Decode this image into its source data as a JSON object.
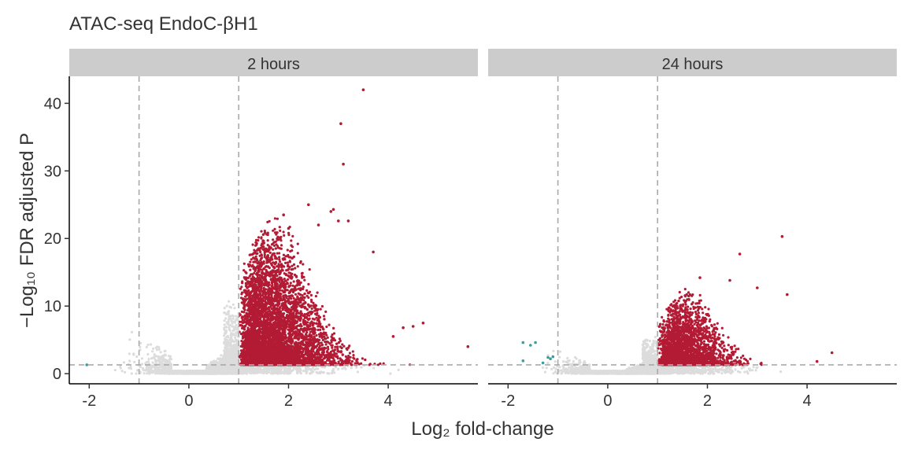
{
  "chart_data": {
    "type": "scatter",
    "title": "ATAC-seq EndoC-βH1",
    "xlabel": "Log₂ fold-change",
    "ylabel": "−Log₁₀ FDR adjusted P",
    "xlim": [
      -2.4,
      5.8
    ],
    "ylim": [
      -1.5,
      44
    ],
    "x_ticks": [
      -2,
      0,
      2,
      4
    ],
    "y_ticks": [
      0,
      10,
      20,
      30,
      40
    ],
    "x_tick_labels": [
      "-2",
      "0",
      "2",
      "4"
    ],
    "y_tick_labels": [
      "0",
      "10",
      "20",
      "30",
      "40"
    ],
    "thresholds": {
      "log2fc": [
        -1,
        1
      ],
      "neg_log10_p": 1.3
    },
    "grid": false,
    "legend": "none",
    "colors": {
      "up": "#b31b34",
      "down": "#3d9c9c",
      "ns": "#dcdcdc",
      "strip": "#cccccc",
      "threshold": "#aaaaaa"
    },
    "panels": [
      {
        "name": "2 hours",
        "highlighted_points": [
          {
            "x": 3.5,
            "y": 42.0,
            "group": "up"
          },
          {
            "x": 3.05,
            "y": 37.0,
            "group": "up"
          },
          {
            "x": 3.1,
            "y": 31.0,
            "group": "up"
          },
          {
            "x": 2.4,
            "y": 25.0,
            "group": "up"
          },
          {
            "x": 2.9,
            "y": 24.3,
            "group": "up"
          },
          {
            "x": 2.85,
            "y": 24.0,
            "group": "up"
          },
          {
            "x": 1.9,
            "y": 23.5,
            "group": "up"
          },
          {
            "x": 3.0,
            "y": 22.6,
            "group": "up"
          },
          {
            "x": 3.2,
            "y": 22.6,
            "group": "up"
          },
          {
            "x": 2.6,
            "y": 22.0,
            "group": "up"
          },
          {
            "x": 2.0,
            "y": 21.5,
            "group": "up"
          },
          {
            "x": 3.7,
            "y": 18.0,
            "group": "up"
          },
          {
            "x": 4.7,
            "y": 7.5,
            "group": "up"
          },
          {
            "x": 5.6,
            "y": 4.0,
            "group": "up"
          },
          {
            "x": 4.5,
            "y": 7.0,
            "group": "up"
          },
          {
            "x": 4.3,
            "y": 6.8,
            "group": "up"
          },
          {
            "x": 4.1,
            "y": 5.5,
            "group": "up"
          },
          {
            "x": -2.05,
            "y": 1.3,
            "group": "down"
          }
        ],
        "up_cloud": {
          "x_range": [
            1.0,
            4.5
          ],
          "y_range": [
            1.3,
            20
          ],
          "approx_count": 6000
        },
        "ns_cloud": {
          "x_range": [
            -1.8,
            1.0
          ],
          "y_range": [
            0,
            12
          ]
        }
      },
      {
        "name": "24 hours",
        "highlighted_points": [
          {
            "x": 3.5,
            "y": 20.3,
            "group": "up"
          },
          {
            "x": 2.65,
            "y": 17.7,
            "group": "up"
          },
          {
            "x": 1.85,
            "y": 14.2,
            "group": "up"
          },
          {
            "x": 2.45,
            "y": 13.8,
            "group": "up"
          },
          {
            "x": 3.0,
            "y": 12.7,
            "group": "up"
          },
          {
            "x": 3.6,
            "y": 11.7,
            "group": "up"
          },
          {
            "x": 4.5,
            "y": 3.1,
            "group": "up"
          },
          {
            "x": 4.2,
            "y": 1.8,
            "group": "up"
          },
          {
            "x": -1.7,
            "y": 4.6,
            "group": "down"
          },
          {
            "x": -1.55,
            "y": 4.2,
            "group": "down"
          },
          {
            "x": -1.45,
            "y": 4.6,
            "group": "down"
          },
          {
            "x": -1.2,
            "y": 2.4,
            "group": "down"
          },
          {
            "x": -1.15,
            "y": 2.2,
            "group": "down"
          },
          {
            "x": -1.1,
            "y": 2.5,
            "group": "down"
          },
          {
            "x": -1.3,
            "y": 1.6,
            "group": "down"
          },
          {
            "x": -1.7,
            "y": 1.9,
            "group": "down"
          }
        ],
        "up_cloud": {
          "x_range": [
            1.0,
            3.9
          ],
          "y_range": [
            1.3,
            11
          ],
          "approx_count": 2500
        },
        "ns_cloud": {
          "x_range": [
            -1.5,
            1.0
          ],
          "y_range": [
            0,
            6
          ]
        }
      }
    ]
  }
}
